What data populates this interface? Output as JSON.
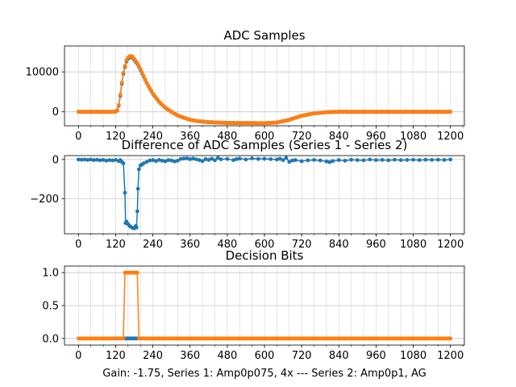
{
  "figure": {
    "xlabel": "Gain: -1.75, Series 1: Amp0p075, 4x --- Series 2: Amp0p1, AG",
    "colors": {
      "series1": "#1f77b4",
      "series2": "#ff7f0e",
      "grid": "#b0b0b0"
    }
  },
  "chart_data": [
    {
      "type": "line",
      "title": "ADC Samples",
      "xlabel": "",
      "ylabel": "",
      "xlim": [
        -45,
        1245
      ],
      "ylim": [
        -3500,
        16500
      ],
      "x_major_ticks": [
        0,
        120,
        240,
        360,
        480,
        600,
        720,
        840,
        960,
        1080,
        1200
      ],
      "x_minor_step": 40,
      "y_ticks": [
        0,
        10000
      ],
      "x_step": 5,
      "series": [
        {
          "name": "Series 1",
          "color": "#1f77b4",
          "marker": "dot",
          "x_range": [
            0,
            1200
          ],
          "keypoints": [
            [
              0,
              0
            ],
            [
              110,
              0
            ],
            [
              120,
              50
            ],
            [
              125,
              300
            ],
            [
              130,
              1500
            ],
            [
              135,
              4000
            ],
            [
              140,
              7000
            ],
            [
              145,
              9500
            ],
            [
              150,
              11200
            ],
            [
              155,
              12600
            ],
            [
              160,
              13300
            ],
            [
              165,
              13600
            ],
            [
              170,
              13700
            ],
            [
              175,
              13500
            ],
            [
              180,
              13000
            ],
            [
              190,
              12000
            ],
            [
              200,
              10500
            ],
            [
              220,
              7200
            ],
            [
              240,
              4500
            ],
            [
              260,
              2500
            ],
            [
              280,
              1000
            ],
            [
              300,
              0
            ],
            [
              320,
              -900
            ],
            [
              340,
              -1500
            ],
            [
              360,
              -2000
            ],
            [
              380,
              -2300
            ],
            [
              420,
              -2600
            ],
            [
              480,
              -2800
            ],
            [
              600,
              -2850
            ],
            [
              640,
              -2700
            ],
            [
              680,
              -2000
            ],
            [
              720,
              -1000
            ],
            [
              760,
              -400
            ],
            [
              800,
              -100
            ],
            [
              840,
              0
            ],
            [
              1200,
              0
            ]
          ]
        },
        {
          "name": "Series 2",
          "color": "#ff7f0e",
          "marker": "dot",
          "x_range": [
            0,
            1200
          ],
          "keypoints": [
            [
              0,
              0
            ],
            [
              110,
              0
            ],
            [
              120,
              80
            ],
            [
              125,
              400
            ],
            [
              130,
              1700
            ],
            [
              135,
              4300
            ],
            [
              140,
              7300
            ],
            [
              145,
              9800
            ],
            [
              150,
              11500
            ],
            [
              155,
              12900
            ],
            [
              160,
              13600
            ],
            [
              165,
              13900
            ],
            [
              170,
              14000
            ],
            [
              175,
              13800
            ],
            [
              180,
              13300
            ],
            [
              190,
              12200
            ],
            [
              200,
              10700
            ],
            [
              220,
              7300
            ],
            [
              240,
              4600
            ],
            [
              260,
              2550
            ],
            [
              280,
              1050
            ],
            [
              300,
              0
            ],
            [
              320,
              -900
            ],
            [
              340,
              -1500
            ],
            [
              360,
              -2000
            ],
            [
              380,
              -2300
            ],
            [
              420,
              -2600
            ],
            [
              480,
              -2800
            ],
            [
              600,
              -2850
            ],
            [
              640,
              -2700
            ],
            [
              680,
              -2000
            ],
            [
              720,
              -1000
            ],
            [
              760,
              -400
            ],
            [
              800,
              -100
            ],
            [
              840,
              0
            ],
            [
              1200,
              0
            ]
          ]
        }
      ]
    },
    {
      "type": "line",
      "title": "Difference of ADC Samples (Series 1 - Series 2)",
      "xlabel": "",
      "ylabel": "",
      "xlim": [
        -45,
        1245
      ],
      "ylim": [
        -380,
        20
      ],
      "x_major_ticks": [
        0,
        120,
        240,
        360,
        480,
        600,
        720,
        840,
        960,
        1080,
        1200
      ],
      "x_minor_step": 40,
      "y_ticks": [
        -200,
        0
      ],
      "series": [
        {
          "name": "Series 1 - Series 2",
          "color": "#1f77b4",
          "marker": "dot",
          "points": [
            [
              0,
              0
            ],
            [
              10,
              -1
            ],
            [
              20,
              0
            ],
            [
              30,
              -2
            ],
            [
              40,
              0
            ],
            [
              50,
              -3
            ],
            [
              60,
              -1
            ],
            [
              70,
              -4
            ],
            [
              80,
              -2
            ],
            [
              90,
              -6
            ],
            [
              100,
              -3
            ],
            [
              110,
              -5
            ],
            [
              120,
              -2
            ],
            [
              130,
              -8
            ],
            [
              135,
              -3
            ],
            [
              140,
              -12
            ],
            [
              145,
              -20
            ],
            [
              150,
              -170
            ],
            [
              152,
              -325
            ],
            [
              155,
              -318
            ],
            [
              160,
              -330
            ],
            [
              165,
              -340
            ],
            [
              170,
              -345
            ],
            [
              175,
              -350
            ],
            [
              180,
              -352
            ],
            [
              185,
              -340
            ],
            [
              187,
              -348
            ],
            [
              190,
              -265
            ],
            [
              192,
              -150
            ],
            [
              195,
              -50
            ],
            [
              200,
              -30
            ],
            [
              205,
              -25
            ],
            [
              210,
              -20
            ],
            [
              220,
              -12
            ],
            [
              230,
              -5
            ],
            [
              240,
              -3
            ],
            [
              250,
              -8
            ],
            [
              260,
              -2
            ],
            [
              270,
              -6
            ],
            [
              280,
              -9
            ],
            [
              290,
              -3
            ],
            [
              300,
              -5
            ],
            [
              310,
              -10
            ],
            [
              320,
              -6
            ],
            [
              330,
              3
            ],
            [
              340,
              5
            ],
            [
              350,
              6
            ],
            [
              360,
              2
            ],
            [
              370,
              5
            ],
            [
              380,
              1
            ],
            [
              390,
              -3
            ],
            [
              400,
              -8
            ],
            [
              410,
              2
            ],
            [
              420,
              -2
            ],
            [
              430,
              4
            ],
            [
              440,
              -4
            ],
            [
              450,
              8
            ],
            [
              460,
              1
            ],
            [
              480,
              3
            ],
            [
              500,
              -3
            ],
            [
              510,
              2
            ],
            [
              520,
              5
            ],
            [
              540,
              0
            ],
            [
              560,
              6
            ],
            [
              580,
              3
            ],
            [
              600,
              4
            ],
            [
              620,
              2
            ],
            [
              640,
              0
            ],
            [
              650,
              4
            ],
            [
              660,
              -3
            ],
            [
              670,
              8
            ],
            [
              680,
              -12
            ],
            [
              690,
              -5
            ],
            [
              700,
              -3
            ],
            [
              720,
              -9
            ],
            [
              740,
              -4
            ],
            [
              760,
              -2
            ],
            [
              780,
              -5
            ],
            [
              800,
              -10
            ],
            [
              810,
              -13
            ],
            [
              820,
              -8
            ],
            [
              840,
              -3
            ],
            [
              860,
              -6
            ],
            [
              880,
              -1
            ],
            [
              900,
              -3
            ],
            [
              920,
              -4
            ],
            [
              940,
              0
            ],
            [
              960,
              -3
            ],
            [
              980,
              -2
            ],
            [
              1000,
              -4
            ],
            [
              1020,
              -1
            ],
            [
              1040,
              -3
            ],
            [
              1060,
              -2
            ],
            [
              1080,
              -1
            ],
            [
              1100,
              -3
            ],
            [
              1120,
              -1
            ],
            [
              1140,
              -2
            ],
            [
              1160,
              -1
            ],
            [
              1180,
              -2
            ],
            [
              1200,
              0
            ]
          ]
        }
      ]
    },
    {
      "type": "line",
      "title": "Decision Bits",
      "xlabel": "Gain: -1.75, Series 1: Amp0p075, 4x --- Series 2: Amp0p1, AG",
      "ylabel": "",
      "xlim": [
        -45,
        1245
      ],
      "ylim": [
        -0.1,
        1.1
      ],
      "x_major_ticks": [
        0,
        120,
        240,
        360,
        480,
        600,
        720,
        840,
        960,
        1080,
        1200
      ],
      "x_minor_step": 40,
      "y_ticks": [
        0.0,
        0.5,
        1.0
      ],
      "x_step": 5,
      "series": [
        {
          "name": "Series 1",
          "color": "#1f77b4",
          "marker": "dot",
          "x_range": [
            0,
            1200
          ],
          "high_range": [],
          "visible_range": [
            150,
            190
          ]
        },
        {
          "name": "Series 2",
          "color": "#ff7f0e",
          "marker": "dot",
          "x_range": [
            0,
            1200
          ],
          "high_range": [
            150,
            190
          ],
          "visible_range": [
            0,
            1200
          ]
        }
      ]
    }
  ]
}
